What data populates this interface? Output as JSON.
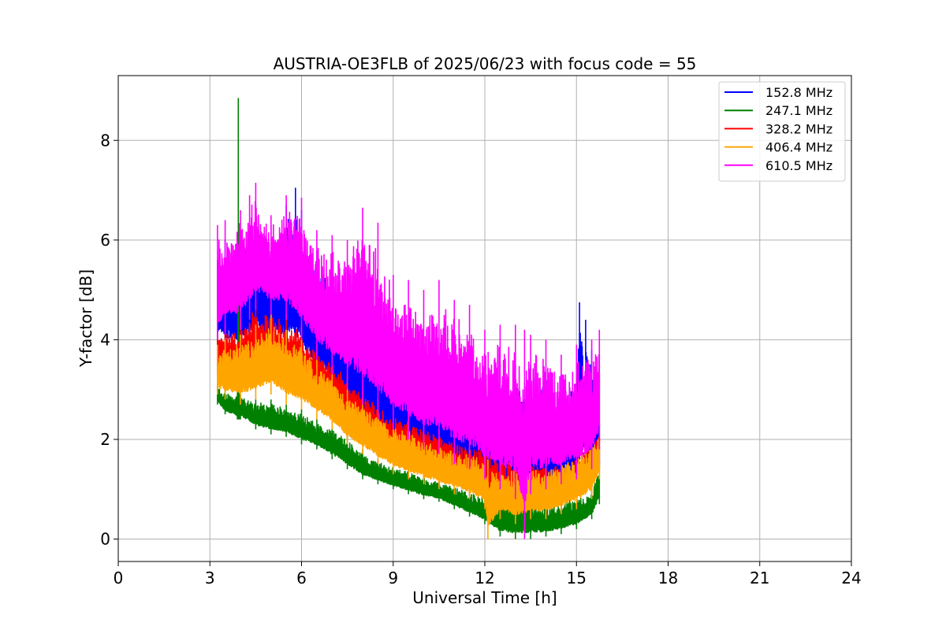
{
  "chart_data": {
    "type": "line",
    "title": "AUSTRIA-OE3FLB of 2025/06/23 with focus code = 55",
    "xlabel": "Universal Time [h]",
    "ylabel": "Y-factor [dB]",
    "xlim": [
      0,
      24
    ],
    "ylim": [
      -0.45,
      9.3
    ],
    "xticks": [
      0,
      3,
      6,
      9,
      12,
      15,
      18,
      21,
      24
    ],
    "xtick_labels": [
      "0",
      "3",
      "6",
      "9",
      "12",
      "15",
      "18",
      "21",
      "24"
    ],
    "yticks": [
      0,
      2,
      4,
      6,
      8
    ],
    "ytick_labels": [
      "0",
      "2",
      "4",
      "6",
      "8"
    ],
    "grid": true,
    "legend_position": "top-right",
    "series": [
      {
        "name": "152.8 MHz",
        "color": "#0000ff",
        "x": [
          3.25,
          3.5,
          4.0,
          4.5,
          5.0,
          5.5,
          5.8,
          6.0,
          6.5,
          7.0,
          7.5,
          8.0,
          8.5,
          9.0,
          9.5,
          10.0,
          10.5,
          11.0,
          11.5,
          12.0,
          12.5,
          13.0,
          13.5,
          14.0,
          14.5,
          15.0,
          15.1,
          15.3,
          15.5,
          15.75
        ],
        "low": [
          3.9,
          3.7,
          3.6,
          3.7,
          3.8,
          3.6,
          3.6,
          3.4,
          3.1,
          2.8,
          2.3,
          2.0,
          1.8,
          1.6,
          1.5,
          1.3,
          1.2,
          1.1,
          1.0,
          0.9,
          0.4,
          0.3,
          0.35,
          0.4,
          0.45,
          0.7,
          1.6,
          1.0,
          1.0,
          1.5
        ],
        "high": [
          5.6,
          6.0,
          6.1,
          6.7,
          6.3,
          6.7,
          7.05,
          6.6,
          5.8,
          5.3,
          5.0,
          4.8,
          4.3,
          4.0,
          3.9,
          3.8,
          3.7,
          3.6,
          3.5,
          3.6,
          3.5,
          3.5,
          3.5,
          3.4,
          3.3,
          3.5,
          4.75,
          4.4,
          3.8,
          3.3
        ]
      },
      {
        "name": "247.1 MHz",
        "color": "#008000",
        "x": [
          3.25,
          3.5,
          3.9,
          3.93,
          3.96,
          4.0,
          4.5,
          5.0,
          5.5,
          6.0,
          6.5,
          7.0,
          7.5,
          8.0,
          8.5,
          9.0,
          9.5,
          10.0,
          10.5,
          11.0,
          11.5,
          12.0,
          12.5,
          13.0,
          13.5,
          14.0,
          14.5,
          15.0,
          15.5,
          15.75
        ],
        "low": [
          2.7,
          2.5,
          2.4,
          2.4,
          2.4,
          2.4,
          2.2,
          2.1,
          2.05,
          1.9,
          1.8,
          1.6,
          1.4,
          1.2,
          1.1,
          1.0,
          0.9,
          0.8,
          0.75,
          0.6,
          0.45,
          0.3,
          0.05,
          0.0,
          0.0,
          0.05,
          0.1,
          0.2,
          0.4,
          0.7
        ],
        "high": [
          3.1,
          3.0,
          2.9,
          8.85,
          2.9,
          2.9,
          2.8,
          2.8,
          2.7,
          2.6,
          2.4,
          2.3,
          2.1,
          1.8,
          1.6,
          1.5,
          1.4,
          1.3,
          1.2,
          1.1,
          1.0,
          0.9,
          0.8,
          0.85,
          0.8,
          0.75,
          0.8,
          0.9,
          1.0,
          1.6
        ]
      },
      {
        "name": "328.2 MHz",
        "color": "#ff0000",
        "x": [
          3.25,
          3.5,
          4.0,
          4.5,
          5.0,
          5.5,
          6.0,
          6.5,
          7.0,
          7.5,
          8.0,
          8.5,
          9.0,
          9.5,
          10.0,
          10.5,
          11.0,
          11.5,
          12.0,
          12.5,
          13.0,
          13.5,
          14.0,
          14.5,
          15.0,
          15.5,
          15.75
        ],
        "low": [
          3.3,
          3.2,
          3.1,
          3.2,
          3.3,
          3.1,
          3.0,
          2.7,
          2.5,
          2.1,
          1.9,
          1.7,
          1.5,
          1.4,
          1.3,
          1.1,
          1.0,
          0.9,
          0.8,
          0.5,
          0.4,
          0.5,
          0.5,
          0.6,
          0.8,
          1.0,
          1.4
        ],
        "high": [
          4.1,
          4.3,
          4.4,
          4.8,
          4.7,
          4.5,
          4.3,
          3.9,
          3.7,
          3.3,
          3.0,
          2.8,
          2.6,
          2.5,
          2.3,
          2.2,
          2.1,
          2.0,
          1.9,
          1.8,
          1.7,
          1.7,
          1.6,
          1.6,
          1.8,
          2.0,
          2.3
        ]
      },
      {
        "name": "406.4 MHz",
        "color": "#ffa500",
        "x": [
          3.25,
          3.5,
          4.0,
          4.5,
          5.0,
          5.5,
          6.0,
          6.5,
          7.0,
          7.5,
          8.0,
          8.5,
          9.0,
          9.5,
          10.0,
          10.5,
          11.0,
          11.5,
          12.0,
          12.1,
          12.5,
          13.0,
          13.5,
          14.0,
          14.5,
          15.0,
          15.5,
          15.75
        ],
        "low": [
          2.9,
          2.8,
          2.7,
          2.8,
          2.9,
          2.7,
          2.6,
          2.4,
          2.2,
          1.9,
          1.7,
          1.5,
          1.3,
          1.2,
          1.1,
          1.0,
          0.9,
          0.8,
          0.6,
          0.0,
          0.4,
          0.3,
          0.4,
          0.4,
          0.5,
          0.6,
          0.8,
          1.2
        ],
        "high": [
          3.9,
          4.0,
          4.1,
          4.3,
          4.5,
          4.2,
          4.0,
          3.6,
          3.4,
          3.0,
          2.8,
          2.6,
          2.4,
          2.3,
          2.1,
          2.0,
          1.9,
          1.8,
          1.7,
          1.6,
          1.6,
          1.5,
          1.5,
          1.5,
          1.6,
          1.8,
          2.0,
          2.2
        ]
      },
      {
        "name": "610.5 MHz",
        "color": "#ff00ff",
        "x": [
          3.25,
          3.5,
          4.0,
          4.3,
          4.5,
          5.0,
          5.5,
          6.0,
          6.5,
          7.0,
          7.5,
          8.0,
          8.5,
          9.0,
          9.5,
          10.0,
          10.5,
          11.0,
          11.5,
          12.0,
          12.5,
          13.0,
          13.3,
          13.5,
          14.0,
          14.5,
          15.0,
          15.5,
          15.75
        ],
        "low": [
          4.0,
          4.1,
          4.2,
          4.4,
          4.6,
          4.5,
          4.4,
          4.0,
          3.6,
          3.3,
          3.0,
          2.7,
          2.4,
          2.2,
          2.0,
          1.8,
          1.7,
          1.5,
          1.4,
          1.2,
          1.0,
          0.8,
          0.0,
          0.9,
          1.0,
          1.1,
          1.2,
          1.4,
          1.8
        ],
        "high": [
          6.3,
          6.4,
          6.6,
          6.9,
          7.15,
          6.5,
          6.9,
          6.85,
          6.2,
          6.1,
          6.0,
          6.65,
          6.35,
          5.3,
          5.2,
          5.0,
          5.2,
          4.8,
          4.7,
          4.2,
          4.3,
          4.3,
          4.2,
          4.1,
          4.0,
          3.7,
          3.9,
          4.0,
          4.2
        ]
      }
    ]
  }
}
